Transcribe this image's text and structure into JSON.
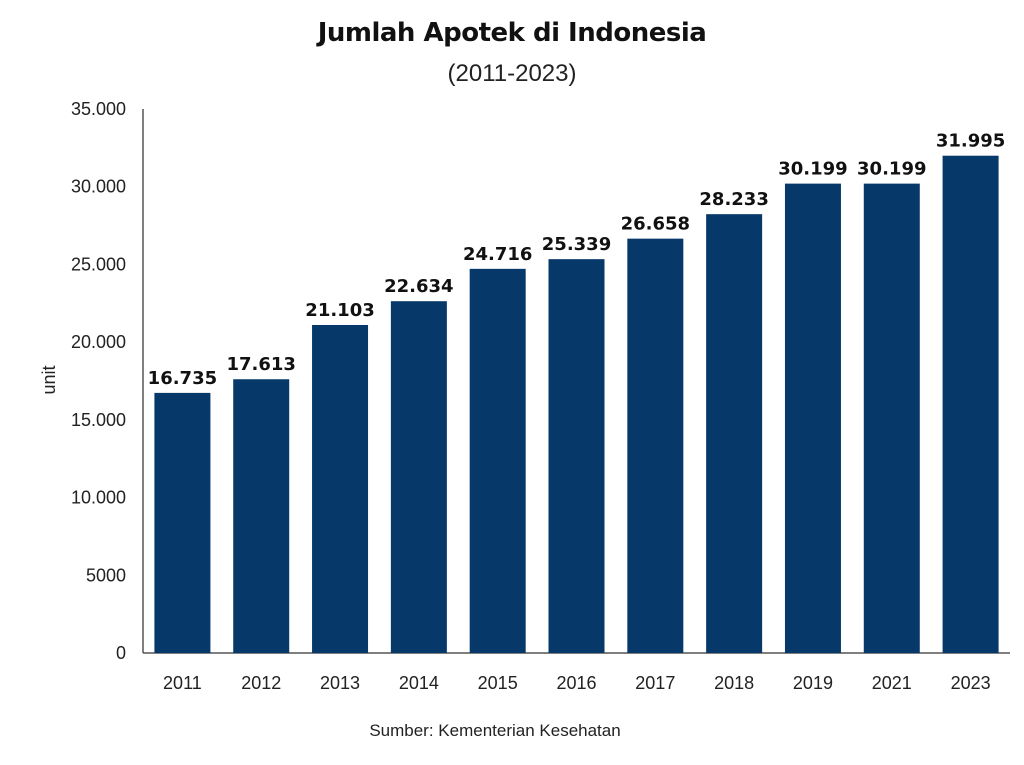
{
  "chart_data": {
    "type": "bar",
    "title": "Jumlah Apotek di Indonesia",
    "subtitle": "(2011-2023)",
    "ylabel": "unit",
    "xlabel": "",
    "source": "Sumber: Kementerian Kesehatan",
    "categories": [
      "2011",
      "2012",
      "2013",
      "2014",
      "2015",
      "2016",
      "2017",
      "2018",
      "2019",
      "2021",
      "2023"
    ],
    "values": [
      16735,
      17613,
      21103,
      22634,
      24716,
      25339,
      26658,
      28233,
      30199,
      30199,
      31995
    ],
    "value_labels": [
      "16.735",
      "17.613",
      "21.103",
      "22.634",
      "24.716",
      "25.339",
      "26.658",
      "28.233",
      "30.199",
      "30.199",
      "31.995"
    ],
    "yticks": [
      0,
      5000,
      10000,
      15000,
      20000,
      25000,
      30000,
      35000
    ],
    "ytick_labels": [
      "0",
      "5000",
      "10.000",
      "15.000",
      "20.000",
      "25.000",
      "30.000",
      "35.000"
    ],
    "ylim": [
      0,
      35000
    ],
    "grid": false,
    "legend": "none",
    "bar_color": "#06386a"
  }
}
